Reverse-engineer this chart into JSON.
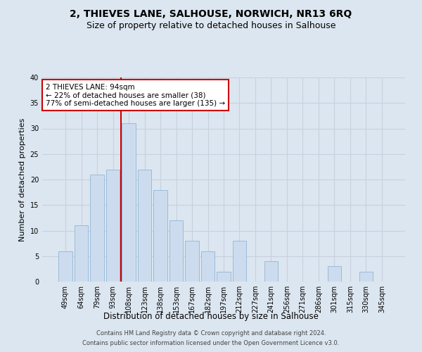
{
  "title": "2, THIEVES LANE, SALHOUSE, NORWICH, NR13 6RQ",
  "subtitle": "Size of property relative to detached houses in Salhouse",
  "xlabel": "Distribution of detached houses by size in Salhouse",
  "ylabel": "Number of detached properties",
  "categories": [
    "49sqm",
    "64sqm",
    "79sqm",
    "93sqm",
    "108sqm",
    "123sqm",
    "138sqm",
    "153sqm",
    "167sqm",
    "182sqm",
    "197sqm",
    "212sqm",
    "227sqm",
    "241sqm",
    "256sqm",
    "271sqm",
    "286sqm",
    "301sqm",
    "315sqm",
    "330sqm",
    "345sqm"
  ],
  "values": [
    6,
    11,
    21,
    22,
    31,
    22,
    18,
    12,
    8,
    6,
    2,
    8,
    0,
    4,
    0,
    0,
    0,
    3,
    0,
    2,
    0
  ],
  "bar_color": "#ccdcee",
  "bar_edge_color": "#9bbbd8",
  "grid_color": "#c8d0de",
  "background_color": "#dce6f0",
  "annotation_box_text": "2 THIEVES LANE: 94sqm\n← 22% of detached houses are smaller (38)\n77% of semi-detached houses are larger (135) →",
  "annotation_box_color": "#ffffff",
  "annotation_box_edge_color": "#cc0000",
  "vline_color": "#cc0000",
  "ylim": [
    0,
    40
  ],
  "yticks": [
    0,
    5,
    10,
    15,
    20,
    25,
    30,
    35,
    40
  ],
  "footer_line1": "Contains HM Land Registry data © Crown copyright and database right 2024.",
  "footer_line2": "Contains public sector information licensed under the Open Government Licence v3.0.",
  "title_fontsize": 10,
  "subtitle_fontsize": 9,
  "tick_fontsize": 7,
  "ylabel_fontsize": 8,
  "xlabel_fontsize": 8.5,
  "annotation_fontsize": 7.5,
  "footer_fontsize": 6
}
